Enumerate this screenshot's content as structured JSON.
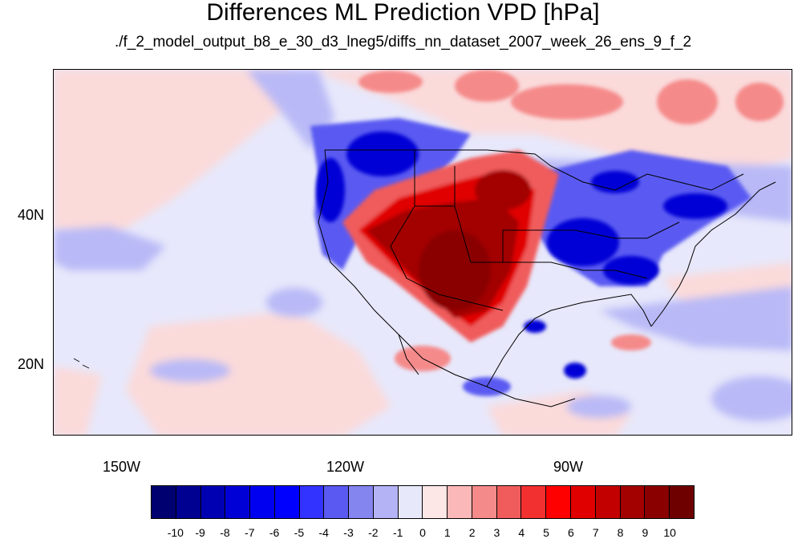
{
  "title": "Differences ML Prediction VPD [hPa]",
  "subtitle": "./f_2_model_output_b8_e_30_d3_lneg5/diffs_nn_dataset_2007_week_26_ens_9_f_2",
  "map": {
    "lon_range": [
      -160,
      -62
    ],
    "lat_range": [
      11,
      60
    ],
    "x_ticks": [
      {
        "lon": -150,
        "label": "150W"
      },
      {
        "lon": -120,
        "label": "120W"
      },
      {
        "lon": -90,
        "label": "90W"
      }
    ],
    "y_ticks": [
      {
        "lat": 40,
        "label": "40N"
      },
      {
        "lat": 20,
        "label": "20N"
      }
    ],
    "colors": {
      "strong_negative": "#0000a0",
      "weak_negative": "#b9b9f7",
      "near_zero": "#e7e8fb",
      "weak_positive": "#fbdada",
      "strong_positive": "#8c0000",
      "coastline": "#000000"
    }
  },
  "colorbar": {
    "labels": [
      "-10",
      "-9",
      "-8",
      "-7",
      "-6",
      "-5",
      "-4",
      "-3",
      "-2",
      "-1",
      "0",
      "1",
      "2",
      "3",
      "4",
      "5",
      "6",
      "7",
      "8",
      "9",
      "10"
    ],
    "colors": [
      "#000070",
      "#000091",
      "#0000b3",
      "#0000d6",
      "#0000f0",
      "#0000ff",
      "#3333ff",
      "#5a5af2",
      "#8585f0",
      "#b3b3f5",
      "#e8e8fb",
      "#fde6e6",
      "#fbb8b8",
      "#f58a8a",
      "#f05c5c",
      "#f23030",
      "#ff0000",
      "#e00000",
      "#c20000",
      "#a30000",
      "#8a0000",
      "#6e0000"
    ]
  }
}
